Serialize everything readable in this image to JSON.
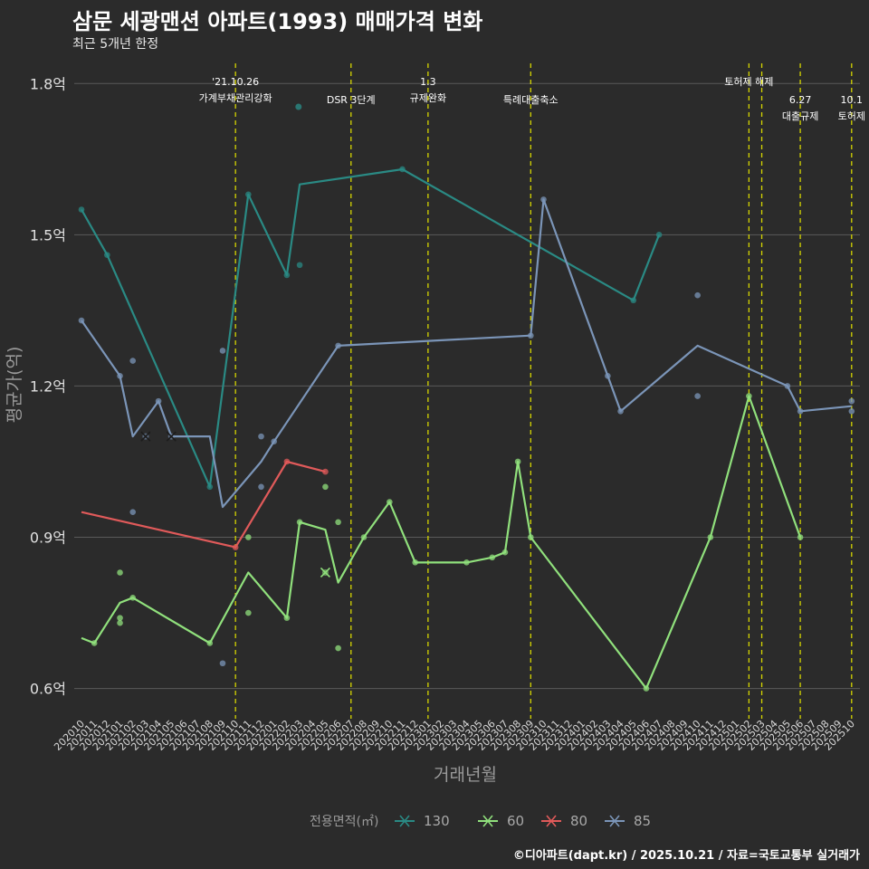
{
  "title": "삼문 세광맨션 아파트(1993) 매매가격 변화",
  "subtitle": "최근 5개년 한정",
  "caption": "©디아파트(dapt.kr) / 2025.10.21 / 자료=국토교통부 실거래가",
  "colors": {
    "background": "#2b2b2b",
    "grid": "#5a5a5a",
    "event_line": "#d6d600",
    "series": {
      "130": "#2a8a84",
      "60": "#90e07c",
      "80": "#e05a5a",
      "85": "#7b95b8"
    }
  },
  "chart_data": {
    "type": "line",
    "xlabel": "거래년월",
    "ylabel": "평균가(억)",
    "ylim": [
      0.54,
      1.84
    ],
    "yticks": [
      0.6,
      0.9,
      1.2,
      1.5,
      1.8
    ],
    "ytick_labels": [
      "0.6억",
      "0.9억",
      "1.2억",
      "1.5억",
      "1.8억"
    ],
    "categories": [
      "202010",
      "202011",
      "202012",
      "202101",
      "202102",
      "202103",
      "202104",
      "202105",
      "202106",
      "202107",
      "202108",
      "202109",
      "202110",
      "202111",
      "202112",
      "202201",
      "202202",
      "202203",
      "202204",
      "202205",
      "202206",
      "202207",
      "202208",
      "202209",
      "202210",
      "202211",
      "202212",
      "202301",
      "202302",
      "202303",
      "202304",
      "202305",
      "202306",
      "202307",
      "202308",
      "202309",
      "202310",
      "202311",
      "202312",
      "202401",
      "202402",
      "202403",
      "202404",
      "202405",
      "202406",
      "202407",
      "202408",
      "202409",
      "202410",
      "202411",
      "202412",
      "202501",
      "202502",
      "202503",
      "202504",
      "202505",
      "202506",
      "202507",
      "202508",
      "202509",
      "202510"
    ],
    "legend_title": "전용면적(㎡)",
    "legend_position": "bottom",
    "series": [
      {
        "name": "130",
        "line": [
          [
            "202010",
            1.55
          ],
          [
            "202012",
            1.46
          ],
          [
            "202108",
            1.0
          ],
          [
            "202111",
            1.58
          ],
          [
            "202202",
            1.42
          ],
          [
            "202203",
            1.6
          ],
          [
            "202211",
            1.63
          ],
          [
            "202405",
            1.37
          ],
          [
            "202407",
            1.5
          ]
        ],
        "points": [
          [
            "202010",
            1.55
          ],
          [
            "202012",
            1.46
          ],
          [
            "202108",
            1.0
          ],
          [
            "202111",
            1.58
          ],
          [
            "202202",
            1.42
          ],
          [
            "202203",
            1.44
          ],
          [
            "202211",
            1.63
          ],
          [
            "202405",
            1.37
          ],
          [
            "202407",
            1.5
          ]
        ]
      },
      {
        "name": "60",
        "line": [
          [
            "202010",
            0.7
          ],
          [
            "202011",
            0.69
          ],
          [
            "202101",
            0.77
          ],
          [
            "202102",
            0.78
          ],
          [
            "202108",
            0.69
          ],
          [
            "202111",
            0.83
          ],
          [
            "202202",
            0.74
          ],
          [
            "202203",
            0.93
          ],
          [
            "202205",
            0.915
          ],
          [
            "202206",
            0.81
          ],
          [
            "202208",
            0.9
          ],
          [
            "202210",
            0.97
          ],
          [
            "202212",
            0.85
          ],
          [
            "202304",
            0.85
          ],
          [
            "202306",
            0.86
          ],
          [
            "202307",
            0.87
          ],
          [
            "202308",
            1.05
          ],
          [
            "202309",
            0.9
          ],
          [
            "202406",
            0.6
          ],
          [
            "202411",
            0.9
          ],
          [
            "202502",
            1.18
          ],
          [
            "202506",
            0.9
          ]
        ],
        "points": [
          [
            "202011",
            0.69
          ],
          [
            "202101",
            0.83
          ],
          [
            "202101",
            0.74
          ],
          [
            "202101",
            0.73
          ],
          [
            "202102",
            0.78
          ],
          [
            "202108",
            0.69
          ],
          [
            "202111",
            0.9
          ],
          [
            "202111",
            0.75
          ],
          [
            "202202",
            0.74
          ],
          [
            "202203",
            0.93
          ],
          [
            "202205",
            1.0
          ],
          [
            "202206",
            0.93
          ],
          [
            "202206",
            0.68
          ],
          [
            "202208",
            0.9
          ],
          [
            "202210",
            0.97
          ],
          [
            "202212",
            0.85
          ],
          [
            "202304",
            0.85
          ],
          [
            "202306",
            0.86
          ],
          [
            "202307",
            0.87
          ],
          [
            "202308",
            1.05
          ],
          [
            "202309",
            0.9
          ],
          [
            "202406",
            0.6
          ],
          [
            "202411",
            0.9
          ],
          [
            "202502",
            1.18
          ],
          [
            "202506",
            0.9
          ]
        ],
        "x_marks": [
          [
            "202205",
            0.83
          ]
        ]
      },
      {
        "name": "80",
        "line": [
          [
            "202010",
            0.95
          ],
          [
            "202110",
            0.88
          ],
          [
            "202202",
            1.05
          ],
          [
            "202205",
            1.03
          ]
        ],
        "points": [
          [
            "202110",
            0.88
          ],
          [
            "202202",
            1.05
          ],
          [
            "202205",
            1.03
          ]
        ]
      },
      {
        "name": "85",
        "line": [
          [
            "202010",
            1.33
          ],
          [
            "202101",
            1.22
          ],
          [
            "202102",
            1.1
          ],
          [
            "202104",
            1.17
          ],
          [
            "202105",
            1.1
          ],
          [
            "202108",
            1.1
          ],
          [
            "202109",
            0.96
          ],
          [
            "202112",
            1.05
          ],
          [
            "202201",
            1.09
          ],
          [
            "202206",
            1.28
          ],
          [
            "202309",
            1.3
          ],
          [
            "202310",
            1.57
          ],
          [
            "202403",
            1.22
          ],
          [
            "202404",
            1.15
          ],
          [
            "202410",
            1.28
          ],
          [
            "202505",
            1.2
          ],
          [
            "202506",
            1.15
          ],
          [
            "202510",
            1.16
          ]
        ],
        "points": [
          [
            "202010",
            1.33
          ],
          [
            "202101",
            1.22
          ],
          [
            "202102",
            1.25
          ],
          [
            "202102",
            0.95
          ],
          [
            "202104",
            1.17
          ],
          [
            "202109",
            1.27
          ],
          [
            "202109",
            0.65
          ],
          [
            "202112",
            1.1
          ],
          [
            "202112",
            1.0
          ],
          [
            "202201",
            1.09
          ],
          [
            "202206",
            1.28
          ],
          [
            "202309",
            1.3
          ],
          [
            "202310",
            1.57
          ],
          [
            "202403",
            1.22
          ],
          [
            "202404",
            1.15
          ],
          [
            "202410",
            1.38
          ],
          [
            "202410",
            1.18
          ],
          [
            "202505",
            1.2
          ],
          [
            "202506",
            1.15
          ],
          [
            "202510",
            1.17
          ],
          [
            "202510",
            1.15
          ]
        ],
        "x_marks": [
          [
            "202103",
            1.1
          ],
          [
            "202105",
            1.1
          ]
        ]
      }
    ],
    "events": [
      {
        "x": "202110",
        "lines": [
          "'21.10.26",
          "가계부채관리강화"
        ],
        "row": 0
      },
      {
        "x": "202207",
        "lines": [
          "DSR 3단계"
        ],
        "row": 1,
        "dot": true
      },
      {
        "x": "202301",
        "lines": [
          "1.3",
          "규제완화"
        ],
        "row": 0
      },
      {
        "x": "202309",
        "lines": [
          "특례대출축소"
        ],
        "row": 1
      },
      {
        "x": "202502",
        "lines": [
          "토허제 해제"
        ],
        "row": 0
      },
      {
        "x": "202503",
        "lines": [],
        "row": 0
      },
      {
        "x": "202506",
        "lines": [
          "6.27",
          "대출규제"
        ],
        "row": 1
      },
      {
        "x": "202510",
        "lines": [
          "10.1",
          "토허제"
        ],
        "row": 1
      }
    ]
  }
}
